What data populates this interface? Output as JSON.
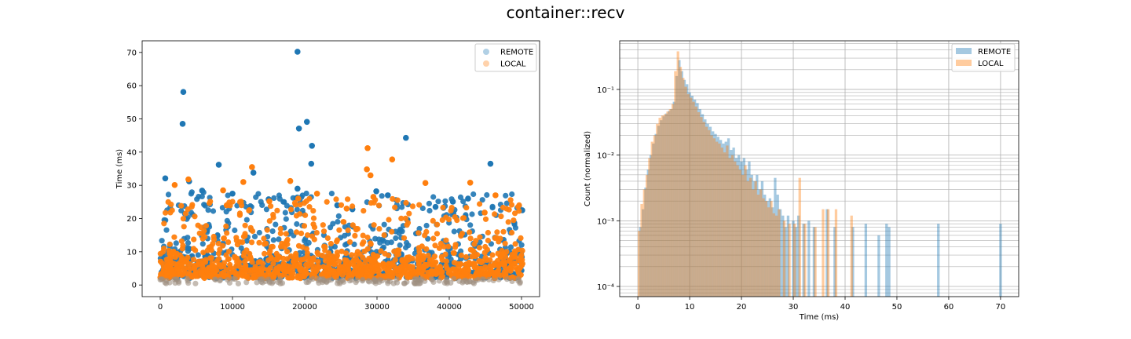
{
  "figure": {
    "suptitle": "container::recv"
  },
  "colors": {
    "remote": "#1f77b4",
    "local": "#ff7f0e",
    "grid": "#b0b0b0"
  },
  "chart_data": [
    {
      "type": "scatter",
      "title": "",
      "xlabel": "",
      "ylabel": "Time (ms)",
      "xlim": [
        -2500,
        52500
      ],
      "ylim": [
        -3.5,
        73.5
      ],
      "xticks": [
        0,
        10000,
        20000,
        30000,
        40000,
        50000
      ],
      "xtick_labels": [
        "0",
        "10000",
        "20000",
        "30000",
        "40000",
        "50000"
      ],
      "yticks": [
        0,
        10,
        20,
        30,
        40,
        50,
        60,
        70
      ],
      "ytick_labels": [
        "0",
        "10",
        "20",
        "30",
        "40",
        "50",
        "60",
        "70"
      ],
      "grid": false,
      "legend": {
        "position": "top-right",
        "entries": [
          "REMOTE",
          "LOCAL"
        ]
      },
      "series": [
        {
          "name": "REMOTE",
          "outliers": [
            [
              19000,
              70.2
            ],
            [
              3200,
              58.1
            ],
            [
              3100,
              48.5
            ],
            [
              20300,
              49.1
            ],
            [
              19200,
              47.1
            ],
            [
              21000,
              41.9
            ],
            [
              20900,
              36.5
            ],
            [
              34000,
              44.3
            ],
            [
              45700,
              36.5
            ],
            [
              8100,
              36.2
            ],
            [
              12900,
              33.8
            ],
            [
              700,
              32.1
            ],
            [
              4000,
              31.2
            ],
            [
              29900,
              28.2
            ],
            [
              19000,
              29.0
            ],
            [
              10000,
              27.5
            ],
            [
              15000,
              25.8
            ],
            [
              31500,
              27.0
            ],
            [
              38100,
              23.5
            ],
            [
              40500,
              25.1
            ],
            [
              24500,
              24.0
            ],
            [
              26600,
              22.8
            ],
            [
              50100,
              22.5
            ],
            [
              42600,
              26.0
            ],
            [
              5800,
              28.4
            ]
          ]
        },
        {
          "name": "LOCAL",
          "outliers": [
            [
              28700,
              41.2
            ],
            [
              32100,
              37.8
            ],
            [
              12700,
              35.5
            ],
            [
              28600,
              34.8
            ],
            [
              29100,
              33.0
            ],
            [
              18000,
              31.3
            ],
            [
              3900,
              31.8
            ],
            [
              11500,
              31.0
            ],
            [
              42900,
              30.8
            ],
            [
              36700,
              30.7
            ],
            [
              46400,
              27.0
            ],
            [
              21700,
              27.5
            ],
            [
              2000,
              30.1
            ],
            [
              29500,
              26.5
            ],
            [
              19100,
              26.0
            ],
            [
              8700,
              28.5
            ],
            [
              15100,
              25.2
            ],
            [
              44900,
              21.8
            ],
            [
              9200,
              24.0
            ],
            [
              25800,
              23.0
            ]
          ]
        }
      ]
    },
    {
      "type": "bar",
      "subtype": "histogram-overlay",
      "title": "",
      "xlabel": "Time (ms)",
      "ylabel": "Count (normalized)",
      "xlim": [
        -3.5,
        73.5
      ],
      "ylim": [
        7e-05,
        0.55
      ],
      "yscale": "log",
      "xticks": [
        0,
        10,
        20,
        30,
        40,
        50,
        60,
        70
      ],
      "xtick_labels": [
        "0",
        "10",
        "20",
        "30",
        "40",
        "50",
        "60",
        "70"
      ],
      "yticks": [
        0.0001,
        0.001,
        0.01,
        0.1
      ],
      "ytick_labels": [
        "10⁻⁴",
        "10⁻³",
        "10⁻²",
        "10⁻¹"
      ],
      "grid": true,
      "legend": {
        "position": "top-right",
        "entries": [
          "REMOTE",
          "LOCAL"
        ]
      },
      "series": [
        {
          "name": "REMOTE",
          "bins": [
            [
              0.5,
              0.0008
            ],
            [
              1.0,
              0.0015
            ],
            [
              1.5,
              0.0032
            ],
            [
              2.0,
              0.006
            ],
            [
              2.5,
              0.01
            ],
            [
              3.0,
              0.015
            ],
            [
              3.5,
              0.021
            ],
            [
              4.0,
              0.028
            ],
            [
              4.5,
              0.034
            ],
            [
              5.0,
              0.039
            ],
            [
              5.5,
              0.043
            ],
            [
              6.0,
              0.047
            ],
            [
              6.5,
              0.05
            ],
            [
              7.0,
              0.065
            ],
            [
              7.5,
              0.16
            ],
            [
              8.0,
              0.28
            ],
            [
              8.5,
              0.19
            ],
            [
              9.0,
              0.14
            ],
            [
              9.5,
              0.12
            ],
            [
              10.0,
              0.09
            ],
            [
              10.5,
              0.08
            ],
            [
              11.0,
              0.07
            ],
            [
              11.5,
              0.062
            ],
            [
              12.0,
              0.05
            ],
            [
              12.5,
              0.042
            ],
            [
              13.0,
              0.035
            ],
            [
              13.5,
              0.03
            ],
            [
              14.0,
              0.027
            ],
            [
              14.5,
              0.023
            ],
            [
              15.0,
              0.021
            ],
            [
              15.5,
              0.019
            ],
            [
              16.0,
              0.017
            ],
            [
              16.5,
              0.015
            ],
            [
              17.0,
              0.016
            ],
            [
              17.5,
              0.018
            ],
            [
              18.0,
              0.012
            ],
            [
              18.5,
              0.013
            ],
            [
              19.0,
              0.009
            ],
            [
              19.5,
              0.01
            ],
            [
              20.0,
              0.008
            ],
            [
              20.5,
              0.009
            ],
            [
              21.0,
              0.006
            ],
            [
              21.5,
              0.008
            ],
            [
              22.0,
              0.005
            ],
            [
              22.5,
              0.004
            ],
            [
              23.0,
              0.005
            ],
            [
              23.5,
              0.003
            ],
            [
              24.0,
              0.004
            ],
            [
              24.5,
              0.0025
            ],
            [
              25.0,
              0.002
            ],
            [
              25.5,
              0.0022
            ],
            [
              26.0,
              0.0016
            ],
            [
              26.5,
              0.0045
            ],
            [
              27.0,
              0.0025
            ],
            [
              27.5,
              0.0015
            ],
            [
              28.0,
              0.0012
            ],
            [
              28.5,
              0.0008
            ],
            [
              29.0,
              0.0012
            ],
            [
              30.0,
              0.001
            ],
            [
              30.5,
              0.0008
            ],
            [
              31.0,
              0.0012
            ],
            [
              32.0,
              0.0009
            ],
            [
              33.0,
              0.001
            ],
            [
              34.0,
              0.0008
            ],
            [
              36.5,
              0.0015
            ],
            [
              38.0,
              0.0008
            ],
            [
              41.5,
              0.0008
            ],
            [
              44.0,
              0.0009
            ],
            [
              46.5,
              0.0006
            ],
            [
              48.0,
              0.0009
            ],
            [
              48.5,
              0.0008
            ],
            [
              58.0,
              0.0009
            ],
            [
              70.0,
              0.0009
            ]
          ]
        },
        {
          "name": "LOCAL",
          "bins": [
            [
              0.25,
              0.0007
            ],
            [
              0.75,
              0.0018
            ],
            [
              1.25,
              0.003
            ],
            [
              1.75,
              0.005
            ],
            [
              2.25,
              0.009
            ],
            [
              2.75,
              0.016
            ],
            [
              3.25,
              0.02
            ],
            [
              3.75,
              0.03
            ],
            [
              4.25,
              0.037
            ],
            [
              4.75,
              0.04
            ],
            [
              5.25,
              0.042
            ],
            [
              5.75,
              0.046
            ],
            [
              6.25,
              0.05
            ],
            [
              6.75,
              0.06
            ],
            [
              7.25,
              0.19
            ],
            [
              7.75,
              0.38
            ],
            [
              8.25,
              0.22
            ],
            [
              8.75,
              0.15
            ],
            [
              9.25,
              0.11
            ],
            [
              9.75,
              0.085
            ],
            [
              10.25,
              0.075
            ],
            [
              10.75,
              0.065
            ],
            [
              11.25,
              0.055
            ],
            [
              11.75,
              0.045
            ],
            [
              12.25,
              0.038
            ],
            [
              12.75,
              0.032
            ],
            [
              13.25,
              0.027
            ],
            [
              13.75,
              0.024
            ],
            [
              14.25,
              0.02
            ],
            [
              14.75,
              0.018
            ],
            [
              15.25,
              0.016
            ],
            [
              15.75,
              0.015
            ],
            [
              16.25,
              0.013
            ],
            [
              16.75,
              0.011
            ],
            [
              17.25,
              0.014
            ],
            [
              17.75,
              0.009
            ],
            [
              18.25,
              0.01
            ],
            [
              18.75,
              0.008
            ],
            [
              19.25,
              0.007
            ],
            [
              19.75,
              0.006
            ],
            [
              20.25,
              0.005
            ],
            [
              20.75,
              0.007
            ],
            [
              21.25,
              0.004
            ],
            [
              21.75,
              0.0045
            ],
            [
              22.25,
              0.003
            ],
            [
              22.75,
              0.004
            ],
            [
              23.25,
              0.0025
            ],
            [
              23.75,
              0.003
            ],
            [
              24.25,
              0.0022
            ],
            [
              24.75,
              0.002
            ],
            [
              25.25,
              0.0016
            ],
            [
              25.75,
              0.002
            ],
            [
              26.25,
              0.0013
            ],
            [
              26.75,
              0.0012
            ],
            [
              27.25,
              0.0015
            ],
            [
              28.25,
              0.001
            ],
            [
              29.25,
              0.0009
            ],
            [
              30.25,
              0.0009
            ],
            [
              31.25,
              0.0045
            ],
            [
              32.25,
              0.0009
            ],
            [
              34.25,
              0.0008
            ],
            [
              35.75,
              0.0015
            ],
            [
              36.75,
              0.0015
            ],
            [
              38.25,
              0.0015
            ],
            [
              41.25,
              0.0012
            ]
          ]
        }
      ]
    }
  ]
}
